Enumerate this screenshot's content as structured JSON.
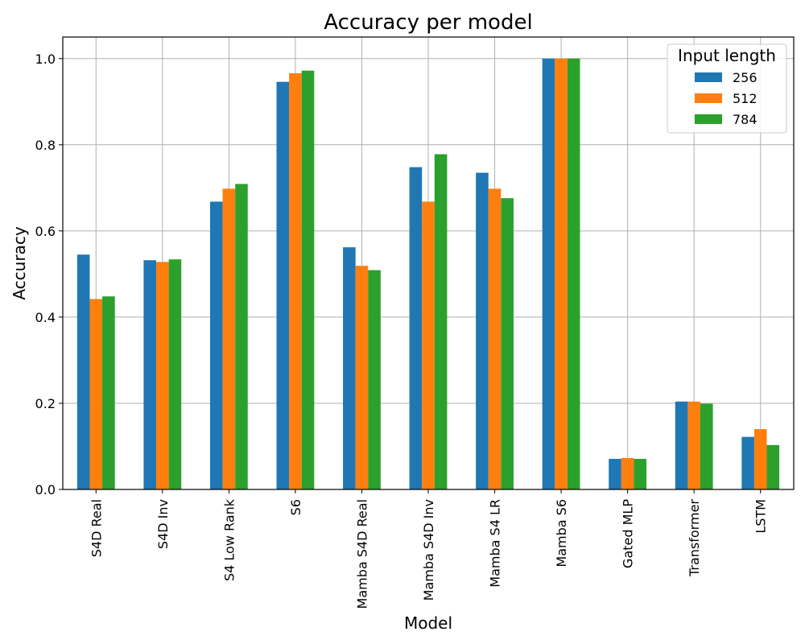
{
  "chart_data": {
    "type": "bar",
    "title": "Accuracy per model",
    "xlabel": "Model",
    "ylabel": "Accuracy",
    "ylim": [
      0,
      1.05
    ],
    "yticks": [
      0.0,
      0.2,
      0.4,
      0.6,
      0.8,
      1.0
    ],
    "ytick_labels": [
      "0.0",
      "0.2",
      "0.4",
      "0.6",
      "0.8",
      "1.0"
    ],
    "grid": true,
    "legend": {
      "title": "Input length",
      "placement": "top-right"
    },
    "categories": [
      "S4D Real",
      "S4D Inv",
      "S4 Low Rank",
      "S6",
      "Mamba S4D Real",
      "Mamba S4D Inv",
      "Mamba S4 LR",
      "Mamba S6",
      "Gated MLP",
      "Transformer",
      "LSTM"
    ],
    "series": [
      {
        "name": "256",
        "color": "#1f77b4",
        "values": [
          0.545,
          0.532,
          0.668,
          0.946,
          0.562,
          0.748,
          0.735,
          1.0,
          0.071,
          0.204,
          0.122
        ]
      },
      {
        "name": "512",
        "color": "#ff7f0e",
        "values": [
          0.442,
          0.528,
          0.698,
          0.966,
          0.519,
          0.668,
          0.698,
          1.0,
          0.073,
          0.204,
          0.14
        ]
      },
      {
        "name": "784",
        "color": "#2ca02c",
        "values": [
          0.448,
          0.534,
          0.709,
          0.972,
          0.509,
          0.778,
          0.676,
          1.0,
          0.071,
          0.199,
          0.103
        ]
      }
    ]
  }
}
